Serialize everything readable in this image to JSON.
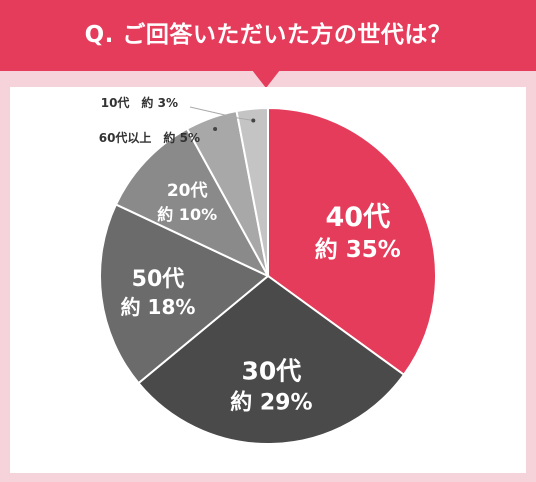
{
  "header": {
    "title": "Q. ご回答いただいた方の世代は？"
  },
  "colors": {
    "banner": "#e63c5b",
    "frame": "#f6d3da",
    "panel": "#ffffff",
    "leader": "#aaaaaa"
  },
  "chart_data": {
    "type": "pie",
    "title": "Q. ご回答いただいた方の世代は？",
    "start_angle_deg": 0,
    "direction": "clockwise",
    "slices": [
      {
        "name": "40代",
        "value": 35,
        "label": "約 35%",
        "color": "#e63c5b",
        "text_color": "#ffffff",
        "label_position": "inside"
      },
      {
        "name": "30代",
        "value": 29,
        "label": "約 29%",
        "color": "#4a4a4a",
        "text_color": "#ffffff",
        "label_position": "inside"
      },
      {
        "name": "50代",
        "value": 18,
        "label": "約 18%",
        "color": "#6b6b6b",
        "text_color": "#ffffff",
        "label_position": "inside"
      },
      {
        "name": "20代",
        "value": 10,
        "label": "約 10%",
        "color": "#8a8a8a",
        "text_color": "#ffffff",
        "label_position": "inside"
      },
      {
        "name": "60代以上",
        "value": 5,
        "label": "約 5%",
        "color": "#a8a8a8",
        "text_color": "#333333",
        "label_position": "outside"
      },
      {
        "name": "10代",
        "value": 3,
        "label": "約 3%",
        "color": "#c4c4c4",
        "text_color": "#333333",
        "label_position": "outside"
      }
    ]
  }
}
